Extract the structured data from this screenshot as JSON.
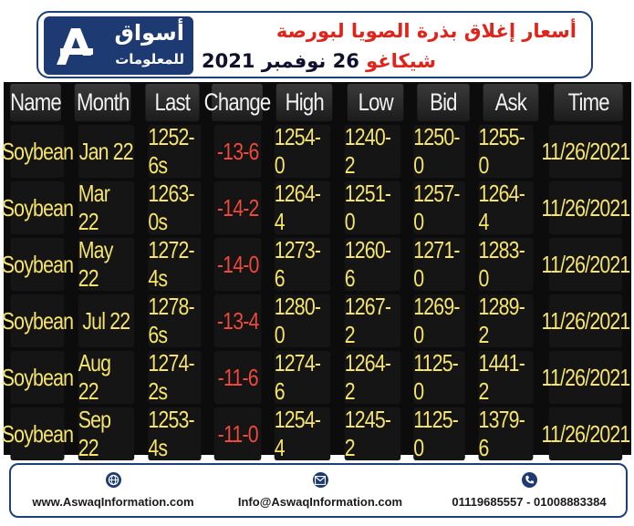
{
  "header": {
    "logo_line1": "أسواق",
    "logo_line2": "للمعلومات",
    "title_line1": "أسعار إغلاق بذرة الصويا لبورصة",
    "title_line2_red": "شيكاغو",
    "title_line2_date": "26 نوفمبر 2021"
  },
  "table": {
    "headers": [
      "Name",
      "Month",
      "Last",
      "Change",
      "High",
      "Low",
      "Bid",
      "Ask",
      "Time"
    ],
    "rows": [
      [
        "Soybean",
        "Jan 22",
        "1252-6s",
        "-13-6",
        "1254-0",
        "1240-2",
        "1250-0",
        "1255-0",
        "11/26/2021"
      ],
      [
        "Soybean",
        "Mar 22",
        "1263-0s",
        "-14-2",
        "1264-4",
        "1251-0",
        "1257-0",
        "1264-4",
        "11/26/2021"
      ],
      [
        "Soybean",
        "May 22",
        "1272-4s",
        "-14-0",
        "1273-6",
        "1260-6",
        "1271-0",
        "1283-0",
        "11/26/2021"
      ],
      [
        "Soybean",
        "Jul 22",
        "1278-6s",
        "-13-4",
        "1280-0",
        "1267-2",
        "1269-0",
        "1289-2",
        "11/26/2021"
      ],
      [
        "Soybean",
        "Aug 22",
        "1274-2s",
        "-11-6",
        "1274-6",
        "1264-2",
        "1125-0",
        "1441-2",
        "11/26/2021"
      ],
      [
        "Soybean",
        "Sep 22",
        "1253-4s",
        "-11-0",
        "1254-4",
        "1245-2",
        "1125-0",
        "1379-6",
        "11/26/2021"
      ]
    ]
  },
  "footer": {
    "website": "www.AswaqInformation.com",
    "email": "Info@AswaqInformation.com",
    "phones": "01119685557 - 01008883384"
  },
  "colors": {
    "brand_blue": "#1d3b72",
    "title_red": "#e0231b",
    "value_yellow": "#f6e56a",
    "change_red": "#f04a3c",
    "board_bg": "#0c0c0c"
  }
}
